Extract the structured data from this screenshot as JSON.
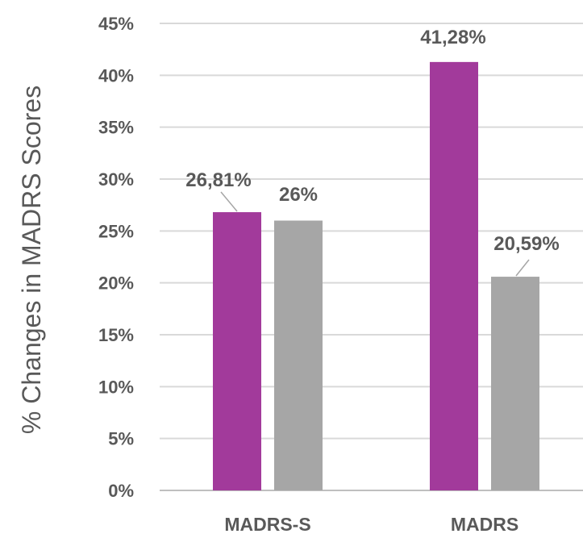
{
  "chart_data": {
    "type": "bar",
    "categories": [
      "MADRS-S",
      "MADRS"
    ],
    "series": [
      {
        "values": [
          26.81,
          41.28
        ],
        "color": "#A23A9B"
      },
      {
        "values": [
          26,
          20.59
        ],
        "color": "#A6A6A6"
      }
    ],
    "data_labels": [
      [
        "26,81%",
        "41,28%"
      ],
      [
        "26%",
        "20,59%"
      ]
    ],
    "ylabel": "% Changes in MADRS Scores",
    "ylim": [
      0,
      45
    ],
    "yticks": [
      0,
      5,
      10,
      15,
      20,
      25,
      30,
      35,
      40,
      45
    ],
    "ytick_labels": [
      "0%",
      "5%",
      "10%",
      "15%",
      "20%",
      "25%",
      "30%",
      "35%",
      "40%",
      "45%"
    ],
    "grid": true,
    "legend": "none"
  }
}
